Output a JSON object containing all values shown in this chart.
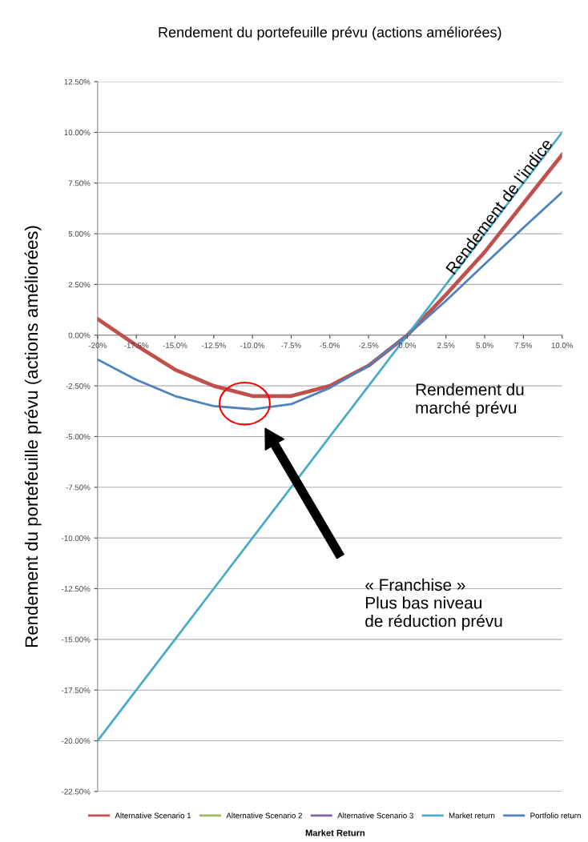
{
  "chart_data": {
    "type": "line",
    "title": "Rendement du portefeuille prévu (actions améliorées)",
    "xlabel": "Market Return",
    "ylabel": "Rendement du portefeuille prévu (actions améliorées)",
    "categories": [
      "-20%",
      "-17.5%",
      "-15.0%",
      "-12.5%",
      "-10.0%",
      "-7.5%",
      "-5.0%",
      "-2.5%",
      "0.0%",
      "2.5%",
      "5.0%",
      "7.5%",
      "10.0%"
    ],
    "series": [
      {
        "name": "Alternative Scenario 1",
        "color": "#c0504d",
        "values": [
          0.8,
          -0.5,
          -1.7,
          -2.5,
          -3.0,
          -3.0,
          -2.5,
          -1.5,
          0,
          2.0,
          4.1,
          6.5,
          8.9
        ]
      },
      {
        "name": "Alternative Scenario 2",
        "color": "#9bbb59",
        "values": [
          null,
          null,
          null,
          null,
          null,
          null,
          null,
          null,
          null,
          null,
          null,
          null,
          null
        ]
      },
      {
        "name": "Alternative Scenario 3",
        "color": "#8064a2",
        "values": [
          null,
          null,
          null,
          null,
          null,
          null,
          null,
          null,
          null,
          null,
          null,
          null,
          null
        ]
      },
      {
        "name": "Market return",
        "color": "#4bacc6",
        "values": [
          -20,
          -17.5,
          -15,
          -12.5,
          -10,
          -7.5,
          -5,
          -2.5,
          0,
          2.5,
          5,
          7.5,
          10
        ]
      },
      {
        "name": "Portfolio return",
        "color": "#4f81bd",
        "values": [
          -1.2,
          -2.2,
          -3.0,
          -3.5,
          -3.65,
          -3.4,
          -2.6,
          -1.5,
          0,
          1.7,
          3.5,
          5.3,
          7.05
        ]
      }
    ],
    "ylim": [
      -22.5,
      12.5
    ],
    "yticks": [
      {
        "value": -22.5,
        "label": "-22.50%"
      },
      {
        "value": -20,
        "label": "-20.00%"
      },
      {
        "value": -17.5,
        "label": "-17.50%"
      },
      {
        "value": -15,
        "label": "-15.00%"
      },
      {
        "value": -12.5,
        "label": "-12.50%"
      },
      {
        "value": -10,
        "label": "-10.00%"
      },
      {
        "value": -7.5,
        "label": "-7.50%"
      },
      {
        "value": -5,
        "label": "-5.00%"
      },
      {
        "value": -2.5,
        "label": "-2.50%"
      },
      {
        "value": 0,
        "label": "0.00%"
      },
      {
        "value": 2.5,
        "label": "2.50%"
      },
      {
        "value": 5,
        "label": "5.00%"
      },
      {
        "value": 7.5,
        "label": "7.50%"
      },
      {
        "value": 10,
        "label": "10.00%"
      },
      {
        "value": 12.5,
        "label": "12.50%"
      }
    ],
    "grid": "y",
    "legend": "bottom",
    "marker": "none",
    "line_style": "solid",
    "annotations": [
      {
        "text": "Rendement de l’indice"
      },
      {
        "text": "Rendement du\nmarché prévu"
      },
      "« Franchise »\nPlus bas niveau\nde réduction prévu"
    ]
  }
}
